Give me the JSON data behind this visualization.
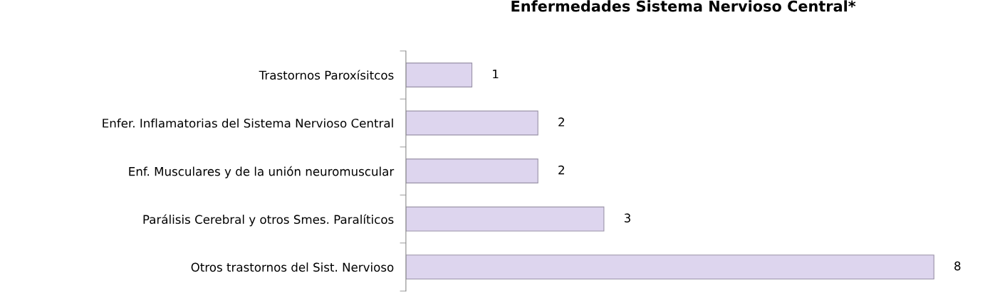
{
  "chart_data": {
    "type": "bar",
    "orientation": "horizontal",
    "title": "Enfermedades Sistema Nervioso Central*",
    "categories": [
      "Trastornos Paroxísitcos",
      "Enfer. Inflamatorias del Sistema Nervioso Central",
      "Enf. Musculares y de la unión neuromuscular",
      "Parálisis Cerebral y otros Smes. Paralíticos",
      "Otros trastornos del Sist. Nervioso"
    ],
    "values": [
      1,
      2,
      2,
      3,
      8
    ],
    "color": "#ddd5ee",
    "data_labels": true,
    "tick_labels": "y"
  }
}
